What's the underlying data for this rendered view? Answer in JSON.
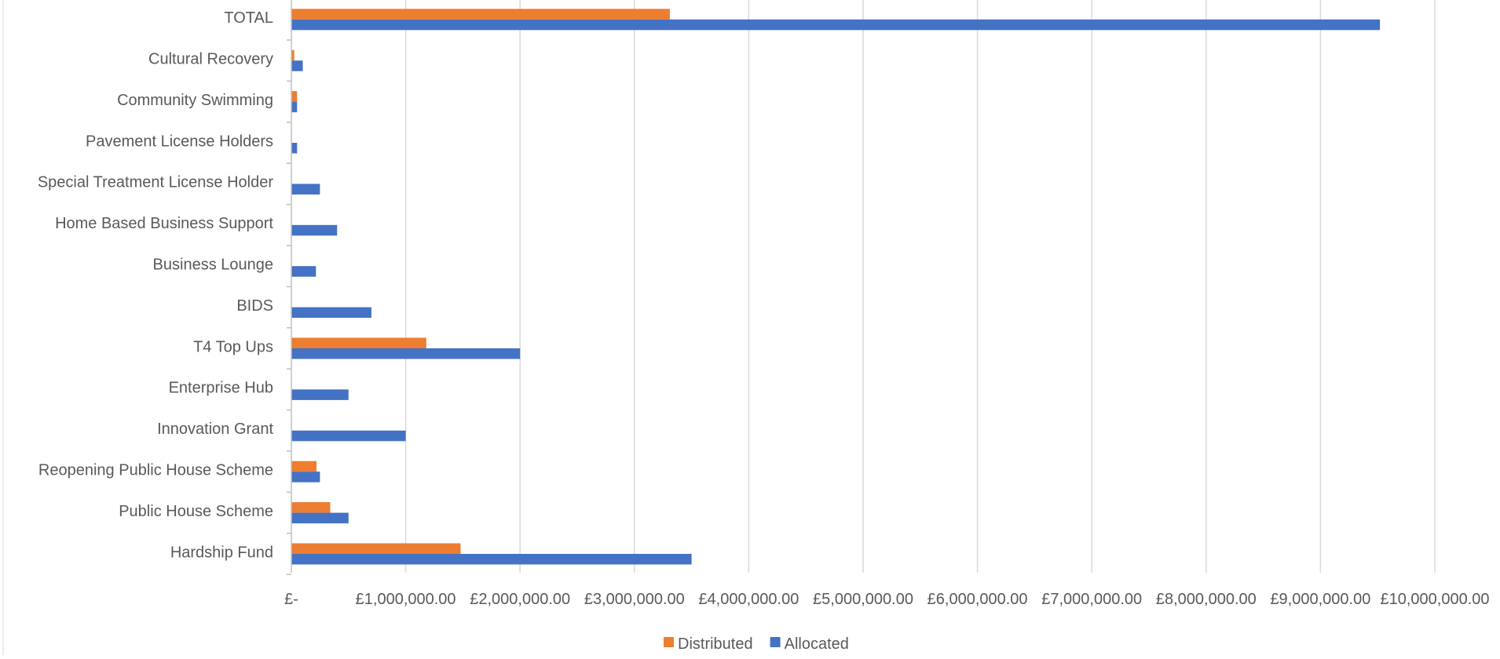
{
  "chart_data": {
    "type": "bar",
    "orientation": "horizontal",
    "categories": [
      "Hardship Fund",
      "Public House Scheme",
      "Reopening Public House Scheme",
      "Innovation Grant",
      "Enterprise Hub",
      "T4 Top Ups",
      "BIDS",
      "Business Lounge",
      "Home Based Business Support",
      "Special Treatment License Holder",
      "Pavement License Holders",
      "Community Swimming",
      "Cultural Recovery",
      "TOTAL"
    ],
    "series": [
      {
        "name": "Distributed",
        "color": "#ED7D31",
        "values": [
          1480000,
          340000,
          220000,
          0,
          0,
          1180000,
          0,
          0,
          0,
          0,
          0,
          50000,
          25000,
          3310000
        ]
      },
      {
        "name": "Allocated",
        "color": "#4472C4",
        "values": [
          3500000,
          500000,
          250000,
          1000000,
          500000,
          2000000,
          700000,
          215000,
          400000,
          250000,
          50000,
          50000,
          100000,
          9520000
        ]
      }
    ],
    "xlim": [
      0,
      10000000
    ],
    "x_ticks": [
      0,
      1000000,
      2000000,
      3000000,
      4000000,
      5000000,
      6000000,
      7000000,
      8000000,
      9000000,
      10000000
    ],
    "x_tick_labels": [
      "£-",
      "£1,000,000.00",
      "£2,000,000.00",
      "£3,000,000.00",
      "£4,000,000.00",
      "£5,000,000.00",
      "£6,000,000.00",
      "£7,000,000.00",
      "£8,000,000.00",
      "£9,000,000.00",
      "£10,000,000.00"
    ],
    "grid": true,
    "legend_position": "bottom"
  }
}
